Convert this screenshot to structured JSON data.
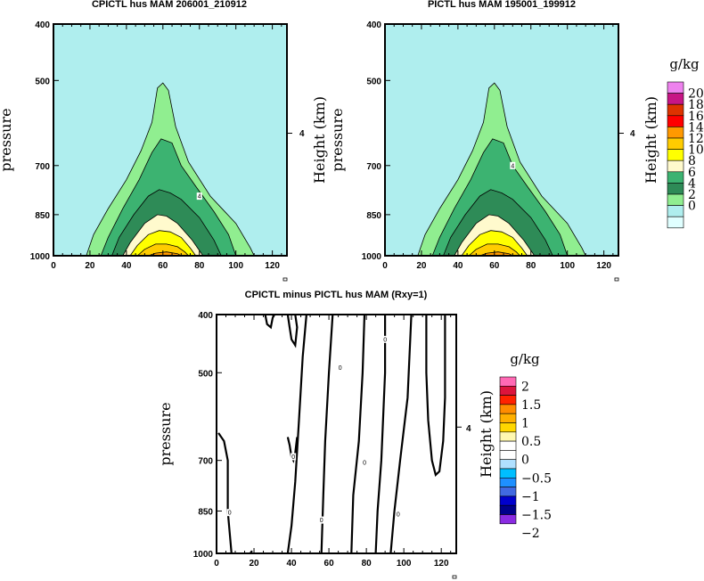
{
  "figure": {
    "panels": [
      {
        "title": "CPICTL hus MAM 206001_210912",
        "ylabel": "pressure",
        "right_label": "Height (km)",
        "right_tick": "4",
        "y_ticks": [
          "400",
          "500",
          "700",
          "850",
          "1000"
        ],
        "x_ticks": [
          "0",
          "20",
          "40",
          "60",
          "80",
          "100",
          "120"
        ]
      },
      {
        "title": "PICTL hus MAM 195001_199912",
        "ylabel": "pressure",
        "right_label": "Height (km)",
        "right_tick": "4",
        "y_ticks": [
          "400",
          "500",
          "700",
          "850",
          "1000"
        ],
        "x_ticks": [
          "0",
          "20",
          "40",
          "60",
          "80",
          "100",
          "120"
        ]
      },
      {
        "title": "CPICTL minus PICTL hus MAM (Rxy=1)",
        "ylabel": "pressure",
        "right_label": "Height (km)",
        "right_tick": "4",
        "y_ticks": [
          "400",
          "500",
          "700",
          "850",
          "1000"
        ],
        "x_ticks": [
          "0",
          "20",
          "40",
          "60",
          "80",
          "100",
          "120"
        ]
      }
    ],
    "colorbar_top": {
      "unit": "g/kg",
      "labels": [
        "20",
        "18",
        "16",
        "14",
        "12",
        "10",
        "8",
        "6",
        "4",
        "2",
        "0"
      ],
      "colors": [
        "#ee82ee",
        "#c71585",
        "#dd3300",
        "#ff0000",
        "#ff9900",
        "#ffcc00",
        "#ffff00",
        "#fffacd",
        "#3cb371",
        "#2e8b57",
        "#90ee90",
        "#afeeee",
        "#e0ffff"
      ]
    },
    "colorbar_diff": {
      "unit": "g/kg",
      "labels": [
        "2",
        "1.5",
        "1",
        "0.5",
        "0",
        "−0.5",
        "−1",
        "−1.5",
        "−2"
      ],
      "colors": [
        "#ff69b4",
        "#dc143c",
        "#ff2200",
        "#ff8c00",
        "#ffb000",
        "#ffd700",
        "#fff8b0",
        "#ffffff",
        "#ffffff",
        "#b0e0ff",
        "#00bfff",
        "#1e90ff",
        "#4169e1",
        "#0000cd",
        "#00008b",
        "#8a2be2"
      ]
    }
  },
  "chart_data": [
    {
      "type": "contour",
      "title": "CPICTL hus MAM 206001_210912",
      "xlabel": "",
      "ylabel": "pressure",
      "xlim": [
        0,
        128
      ],
      "ylim_pressure": [
        1000,
        400
      ],
      "levels": [
        0,
        2,
        4,
        6,
        8,
        10,
        12,
        14
      ],
      "fill_colors": [
        "#afeeee",
        "#90ee90",
        "#3cb371",
        "#2e8b57",
        "#fffacd",
        "#ffff00",
        "#ffcc00",
        "#ff9900",
        "#ff0000"
      ],
      "contours": [
        {
          "level": 2,
          "points": [
            [
              18,
              1000
            ],
            [
              22,
              920
            ],
            [
              30,
              830
            ],
            [
              40,
              740
            ],
            [
              48,
              660
            ],
            [
              54,
              590
            ],
            [
              57,
              515
            ],
            [
              60,
              505
            ],
            [
              63,
              520
            ],
            [
              67,
              600
            ],
            [
              74,
              690
            ],
            [
              86,
              790
            ],
            [
              100,
              880
            ],
            [
              108,
              970
            ],
            [
              110,
              1000
            ]
          ]
        },
        {
          "level": 4,
          "points": [
            [
              26,
              1000
            ],
            [
              30,
              930
            ],
            [
              38,
              830
            ],
            [
              47,
              740
            ],
            [
              54,
              665
            ],
            [
              59,
              630
            ],
            [
              65,
              640
            ],
            [
              70,
              700
            ],
            [
              78,
              760
            ],
            [
              88,
              840
            ],
            [
              96,
              920
            ],
            [
              100,
              1000
            ]
          ]
        },
        {
          "level": 6,
          "points": [
            [
              32,
              1000
            ],
            [
              36,
              930
            ],
            [
              44,
              850
            ],
            [
              52,
              790
            ],
            [
              58,
              770
            ],
            [
              64,
              780
            ],
            [
              70,
              800
            ],
            [
              80,
              860
            ],
            [
              88,
              940
            ],
            [
              92,
              1000
            ]
          ]
        },
        {
          "level": 8,
          "points": [
            [
              38,
              1000
            ],
            [
              42,
              950
            ],
            [
              50,
              880
            ],
            [
              57,
              850
            ],
            [
              62,
              855
            ],
            [
              68,
              880
            ],
            [
              76,
              940
            ],
            [
              82,
              1000
            ]
          ]
        },
        {
          "level": 10,
          "points": [
            [
              42,
              1000
            ],
            [
              46,
              960
            ],
            [
              52,
              920
            ],
            [
              58,
              905
            ],
            [
              64,
              910
            ],
            [
              70,
              930
            ],
            [
              75,
              970
            ],
            [
              78,
              1000
            ]
          ]
        },
        {
          "level": 12,
          "points": [
            [
              46,
              1000
            ],
            [
              50,
              975
            ],
            [
              56,
              955
            ],
            [
              62,
              955
            ],
            [
              68,
              965
            ],
            [
              72,
              985
            ],
            [
              74,
              1000
            ]
          ]
        },
        {
          "level": 14,
          "points": [
            [
              52,
              1000
            ],
            [
              56,
              990
            ],
            [
              62,
              985
            ],
            [
              68,
              992
            ],
            [
              70,
              1000
            ]
          ]
        }
      ],
      "labels": [
        {
          "text": "4",
          "x": 80,
          "p": 790
        }
      ]
    },
    {
      "type": "contour",
      "title": "PICTL hus MAM 195001_199912",
      "xlabel": "",
      "ylabel": "pressure",
      "xlim": [
        0,
        128
      ],
      "ylim_pressure": [
        1000,
        400
      ],
      "levels": [
        0,
        2,
        4,
        6,
        8,
        10,
        12,
        14
      ],
      "fill_colors": [
        "#afeeee",
        "#90ee90",
        "#3cb371",
        "#2e8b57",
        "#fffacd",
        "#ffff00",
        "#ffcc00",
        "#ff9900",
        "#ff0000"
      ],
      "contours": [
        {
          "level": 2,
          "points": [
            [
              18,
              1000
            ],
            [
              22,
              920
            ],
            [
              30,
              830
            ],
            [
              40,
              740
            ],
            [
              48,
              660
            ],
            [
              54,
              590
            ],
            [
              57,
              515
            ],
            [
              60,
              505
            ],
            [
              63,
              520
            ],
            [
              67,
              600
            ],
            [
              74,
              690
            ],
            [
              86,
              790
            ],
            [
              100,
              880
            ],
            [
              108,
              970
            ],
            [
              110,
              1000
            ]
          ]
        },
        {
          "level": 4,
          "points": [
            [
              26,
              1000
            ],
            [
              30,
              930
            ],
            [
              38,
              830
            ],
            [
              47,
              740
            ],
            [
              54,
              665
            ],
            [
              59,
              630
            ],
            [
              65,
              640
            ],
            [
              70,
              700
            ],
            [
              78,
              760
            ],
            [
              88,
              840
            ],
            [
              96,
              920
            ],
            [
              100,
              1000
            ]
          ]
        },
        {
          "level": 6,
          "points": [
            [
              32,
              1000
            ],
            [
              36,
              930
            ],
            [
              44,
              850
            ],
            [
              52,
              790
            ],
            [
              58,
              770
            ],
            [
              64,
              780
            ],
            [
              70,
              800
            ],
            [
              80,
              860
            ],
            [
              88,
              940
            ],
            [
              92,
              1000
            ]
          ]
        },
        {
          "level": 8,
          "points": [
            [
              38,
              1000
            ],
            [
              42,
              950
            ],
            [
              50,
              880
            ],
            [
              57,
              850
            ],
            [
              62,
              855
            ],
            [
              68,
              880
            ],
            [
              76,
              940
            ],
            [
              82,
              1000
            ]
          ]
        },
        {
          "level": 10,
          "points": [
            [
              42,
              1000
            ],
            [
              46,
              960
            ],
            [
              52,
              920
            ],
            [
              58,
              905
            ],
            [
              64,
              910
            ],
            [
              70,
              930
            ],
            [
              75,
              970
            ],
            [
              78,
              1000
            ]
          ]
        },
        {
          "level": 12,
          "points": [
            [
              46,
              1000
            ],
            [
              50,
              975
            ],
            [
              56,
              955
            ],
            [
              62,
              955
            ],
            [
              68,
              965
            ],
            [
              72,
              985
            ],
            [
              74,
              1000
            ]
          ]
        },
        {
          "level": 14,
          "points": [
            [
              52,
              1000
            ],
            [
              56,
              990
            ],
            [
              62,
              985
            ],
            [
              68,
              992
            ],
            [
              70,
              1000
            ]
          ]
        }
      ],
      "labels": [
        {
          "text": "4",
          "x": 70,
          "p": 700
        }
      ]
    },
    {
      "type": "contour",
      "title": "CPICTL minus PICTL hus MAM (Rxy=1)",
      "xlabel": "",
      "ylabel": "pressure",
      "xlim": [
        0,
        128
      ],
      "ylim_pressure": [
        1000,
        400
      ],
      "zero_contours": [
        {
          "points": [
            [
              18,
              1000
            ],
            [
              19,
              990
            ]
          ]
        },
        {
          "points": [
            [
              26,
              400
            ],
            [
              27,
              415
            ],
            [
              29,
              420
            ],
            [
              30,
              405
            ],
            [
              31,
              400
            ]
          ]
        },
        {
          "points": [
            [
              38,
              400
            ],
            [
              39,
              420
            ],
            [
              40,
              440
            ],
            [
              42,
              450
            ],
            [
              43,
              420
            ],
            [
              42,
              400
            ]
          ]
        },
        {
          "points": [
            [
              1,
              630
            ],
            [
              4,
              650
            ],
            [
              6,
              700
            ],
            [
              6,
              850
            ],
            [
              8,
              1000
            ]
          ]
        },
        {
          "points": [
            [
              38,
              640
            ],
            [
              39,
              660
            ],
            [
              40,
              690
            ],
            [
              41,
              700
            ],
            [
              42,
              680
            ],
            [
              43,
              640
            ]
          ]
        },
        {
          "points": [
            [
              48,
              400
            ],
            [
              46,
              470
            ],
            [
              44,
              600
            ],
            [
              42,
              760
            ],
            [
              40,
              900
            ],
            [
              38,
              1000
            ]
          ]
        },
        {
          "points": [
            [
              62,
              400
            ],
            [
              60,
              500
            ],
            [
              58,
              650
            ],
            [
              57,
              800
            ],
            [
              56,
              1000
            ]
          ]
        },
        {
          "points": [
            [
              79,
              400
            ],
            [
              78,
              500
            ],
            [
              76,
              650
            ],
            [
              73,
              800
            ],
            [
              72,
              1000
            ]
          ]
        },
        {
          "points": [
            [
              90,
              400
            ],
            [
              90,
              500
            ],
            [
              88,
              700
            ],
            [
              86,
              850
            ],
            [
              85,
              1000
            ]
          ]
        },
        {
          "points": [
            [
              104,
              400
            ],
            [
              102,
              550
            ],
            [
              98,
              700
            ],
            [
              95,
              850
            ],
            [
              93,
              1000
            ]
          ]
        },
        {
          "points": [
            [
              112,
              400
            ],
            [
              112,
              500
            ],
            [
              113,
              600
            ],
            [
              115,
              700
            ],
            [
              117,
              740
            ],
            [
              119,
              730
            ],
            [
              121,
              650
            ],
            [
              122,
              550
            ],
            [
              122,
              400
            ]
          ]
        }
      ],
      "labels": [
        {
          "text": "0",
          "x": 66,
          "p": 490
        },
        {
          "text": "0",
          "x": 90,
          "p": 440
        },
        {
          "text": "0",
          "x": 41,
          "p": 690
        },
        {
          "text": "0",
          "x": 79,
          "p": 705
        },
        {
          "text": "0",
          "x": 7,
          "p": 855
        },
        {
          "text": "0",
          "x": 56,
          "p": 880
        },
        {
          "text": "0",
          "x": 97,
          "p": 860
        }
      ]
    }
  ]
}
